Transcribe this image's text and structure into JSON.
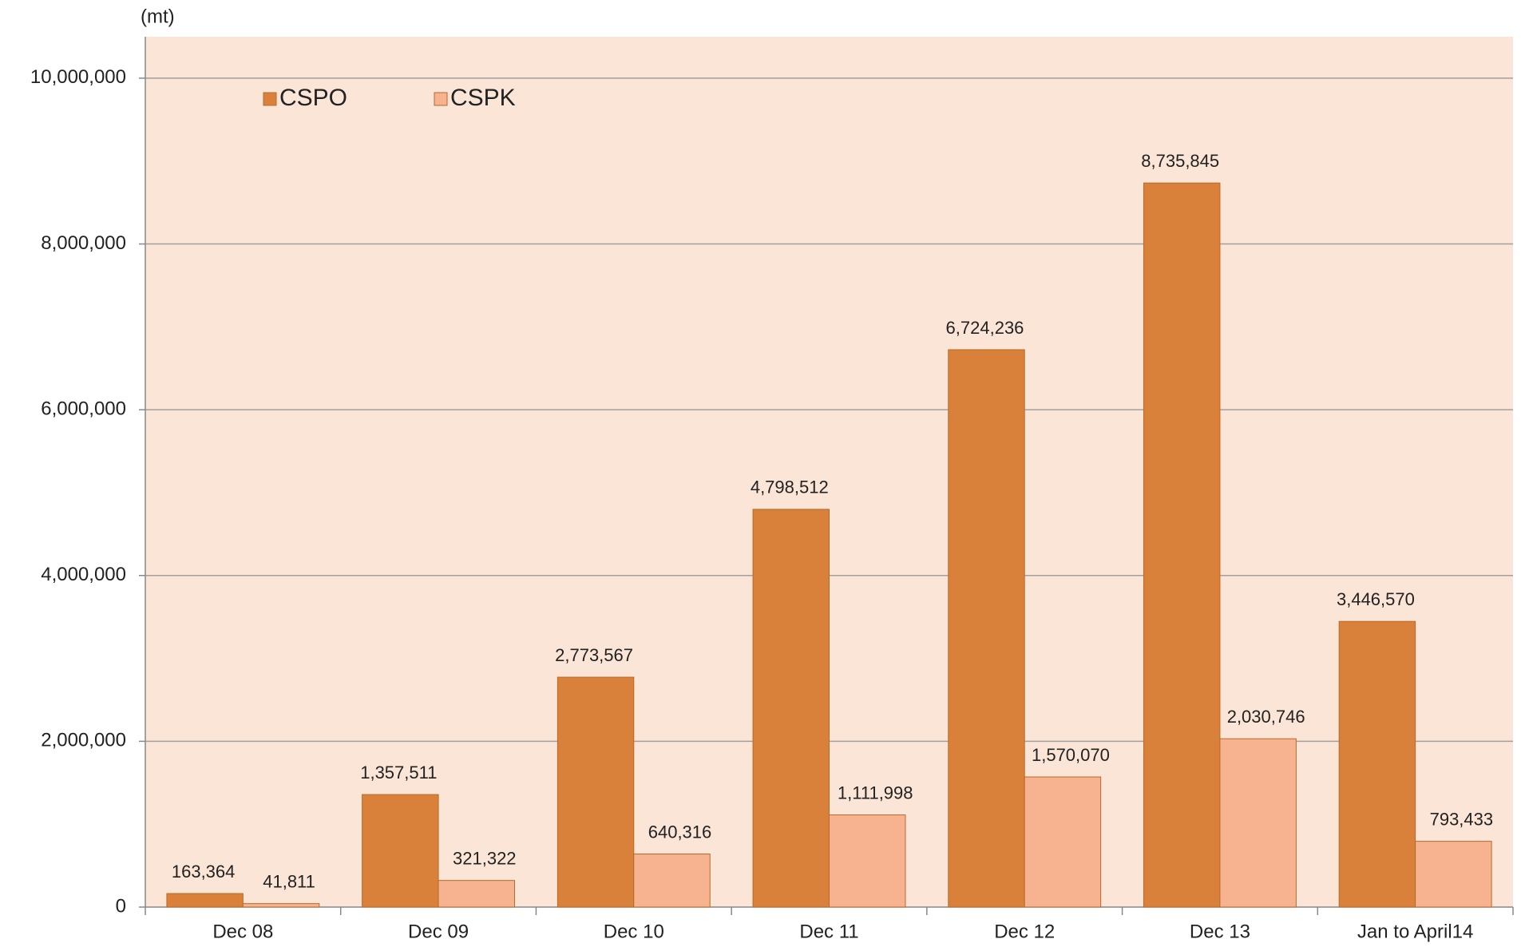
{
  "chart_data": {
    "type": "bar",
    "y_label": "(mt)",
    "categories": [
      "Dec 08",
      "Dec 09",
      "Dec 10",
      "Dec 11",
      "Dec 12",
      "Dec 13",
      "Jan to April14"
    ],
    "series": [
      {
        "name": "CSPO",
        "color": "#d9813a",
        "values": [
          163364,
          1357511,
          2773567,
          4798512,
          6724236,
          8735845,
          3446570
        ],
        "value_labels": [
          "163,364",
          "1,357,511",
          "2,773,567",
          "4,798,512",
          "6,724,236",
          "8,735,845",
          "3,446,570"
        ]
      },
      {
        "name": "CSPK",
        "color": "#f7b38f",
        "values": [
          41811,
          321322,
          640316,
          1111998,
          1570070,
          2030746,
          793433
        ],
        "value_labels": [
          "41,811",
          "321,322",
          "640,316",
          "1,111,998",
          "1,570,070",
          "2,030,746",
          "793,433"
        ]
      }
    ],
    "ylim": [
      0,
      10500000
    ],
    "yticks": [
      0,
      {
        "value": 2000000,
        "label": "2,000,000"
      },
      {
        "value": 4000000,
        "label": "4,000,000"
      },
      {
        "value": 6000000,
        "label": "6,000,000"
      },
      {
        "value": 8000000,
        "label": "8,000,000"
      },
      {
        "value": 10000000,
        "label": "10,000,000"
      }
    ],
    "grid": true,
    "legend": "top-left",
    "background": "#fbe5d6"
  }
}
